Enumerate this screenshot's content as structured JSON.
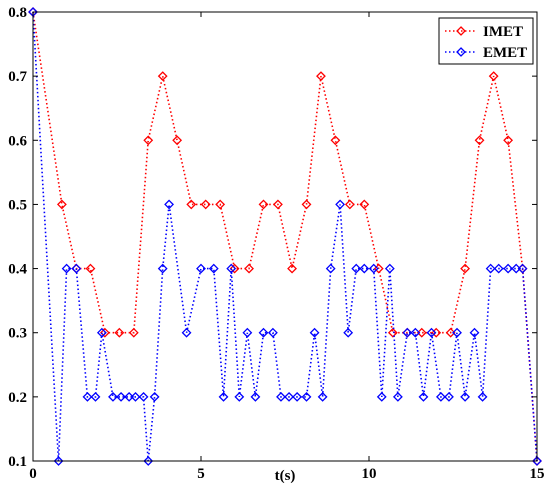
{
  "chart_data": {
    "type": "line",
    "title": "",
    "xlabel": "t(s)",
    "ylabel": "",
    "xlim": [
      0,
      15
    ],
    "ylim": [
      0.1,
      0.8
    ],
    "xticks": [
      0,
      5,
      10,
      15
    ],
    "yticks": [
      0.1,
      0.2,
      0.3,
      0.4,
      0.5,
      0.6,
      0.7,
      0.8
    ],
    "grid": false,
    "legend_position": "top-right",
    "series": [
      {
        "name": "IMET",
        "color": "#ff0000",
        "marker": "diamond",
        "line_style": "dotted",
        "x": [
          0,
          0.86,
          1.29,
          1.71,
          2.14,
          2.57,
          3.0,
          3.43,
          3.86,
          4.29,
          4.71,
          5.14,
          5.57,
          6.0,
          6.43,
          6.86,
          7.29,
          7.71,
          8.14,
          8.57,
          9.0,
          9.43,
          9.86,
          10.29,
          10.71,
          11.14,
          11.57,
          12.0,
          12.43,
          12.86,
          13.29,
          13.71,
          14.14,
          14.57,
          15.0
        ],
        "y": [
          0.8,
          0.5,
          0.4,
          0.4,
          0.3,
          0.3,
          0.3,
          0.6,
          0.7,
          0.6,
          0.5,
          0.5,
          0.5,
          0.4,
          0.4,
          0.5,
          0.5,
          0.4,
          0.5,
          0.7,
          0.6,
          0.5,
          0.5,
          0.4,
          0.3,
          0.3,
          0.3,
          0.3,
          0.3,
          0.4,
          0.6,
          0.7,
          0.6,
          0.4,
          0.1
        ]
      },
      {
        "name": "EMET",
        "color": "#0000ff",
        "marker": "diamond",
        "line_style": "dotted",
        "x": [
          0,
          0.76,
          1.0,
          1.29,
          1.62,
          1.86,
          2.05,
          2.38,
          2.62,
          2.86,
          3.05,
          3.29,
          3.43,
          3.62,
          3.86,
          4.05,
          4.57,
          5.0,
          5.38,
          5.67,
          5.9,
          6.14,
          6.38,
          6.62,
          6.86,
          7.14,
          7.38,
          7.62,
          7.86,
          8.14,
          8.38,
          8.62,
          8.86,
          9.14,
          9.38,
          9.62,
          9.86,
          10.14,
          10.38,
          10.62,
          10.86,
          11.14,
          11.38,
          11.62,
          11.86,
          12.14,
          12.38,
          12.62,
          12.86,
          13.14,
          13.38,
          13.62,
          13.86,
          14.14,
          14.38,
          14.57,
          15.0
        ],
        "y": [
          0.8,
          0.1,
          0.4,
          0.4,
          0.2,
          0.2,
          0.3,
          0.2,
          0.2,
          0.2,
          0.2,
          0.2,
          0.1,
          0.2,
          0.4,
          0.5,
          0.3,
          0.4,
          0.4,
          0.2,
          0.4,
          0.2,
          0.3,
          0.2,
          0.3,
          0.3,
          0.2,
          0.2,
          0.2,
          0.2,
          0.3,
          0.2,
          0.4,
          0.5,
          0.3,
          0.4,
          0.4,
          0.4,
          0.2,
          0.4,
          0.2,
          0.3,
          0.3,
          0.2,
          0.3,
          0.2,
          0.2,
          0.3,
          0.2,
          0.3,
          0.2,
          0.4,
          0.4,
          0.4,
          0.4,
          0.4,
          0.1
        ]
      }
    ]
  }
}
